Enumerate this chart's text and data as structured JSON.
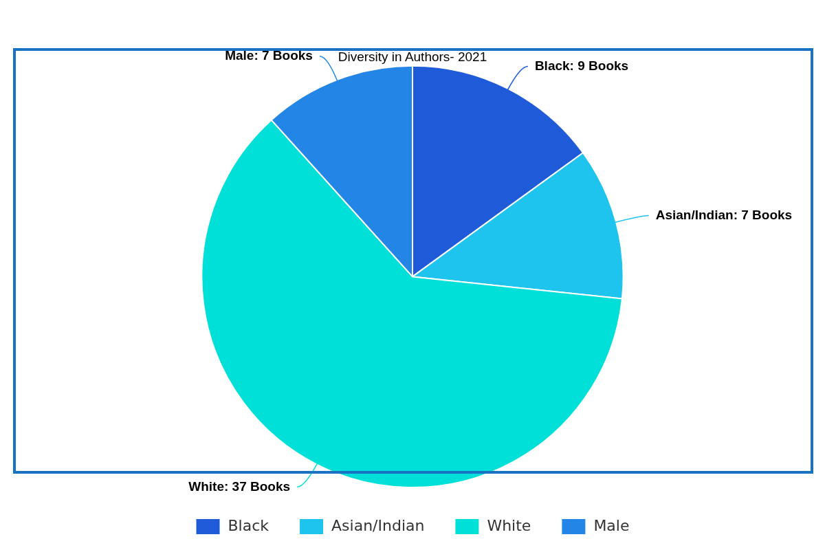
{
  "chart_data": {
    "type": "pie",
    "title": "Diversity in Authors- 2021",
    "categories": [
      "Black",
      "Asian/Indian",
      "White",
      "Male"
    ],
    "values": [
      9,
      7,
      37,
      7
    ],
    "colors": [
      "#1f5bd9",
      "#1fc4ee",
      "#00e0d9",
      "#2385e5"
    ],
    "value_labels": [
      "Black: 9 Books",
      "Asian/Indian: 7 Books",
      "White: 37 Books",
      "Male: 7 Books"
    ],
    "legend": "bottom"
  }
}
